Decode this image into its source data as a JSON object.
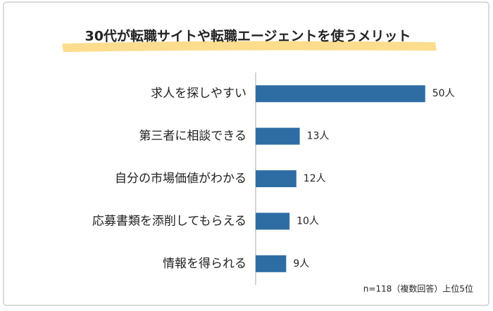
{
  "chart_data": {
    "type": "bar",
    "orientation": "horizontal",
    "title": "30代が転職サイトや転職エージェントを使うメリット",
    "categories": [
      "求人を探しやすい",
      "第三者に相談できる",
      "自分の市場価値がわかる",
      "応募書類を添削してもらえる",
      "情報を得られる"
    ],
    "values": [
      50,
      13,
      12,
      10,
      9
    ],
    "value_labels": [
      "50人",
      "13人",
      "12人",
      "10人",
      "9人"
    ],
    "color": "#2e6da4",
    "xlim": [
      0,
      65
    ],
    "annotation": "n=118（複数回答）上位5位"
  }
}
